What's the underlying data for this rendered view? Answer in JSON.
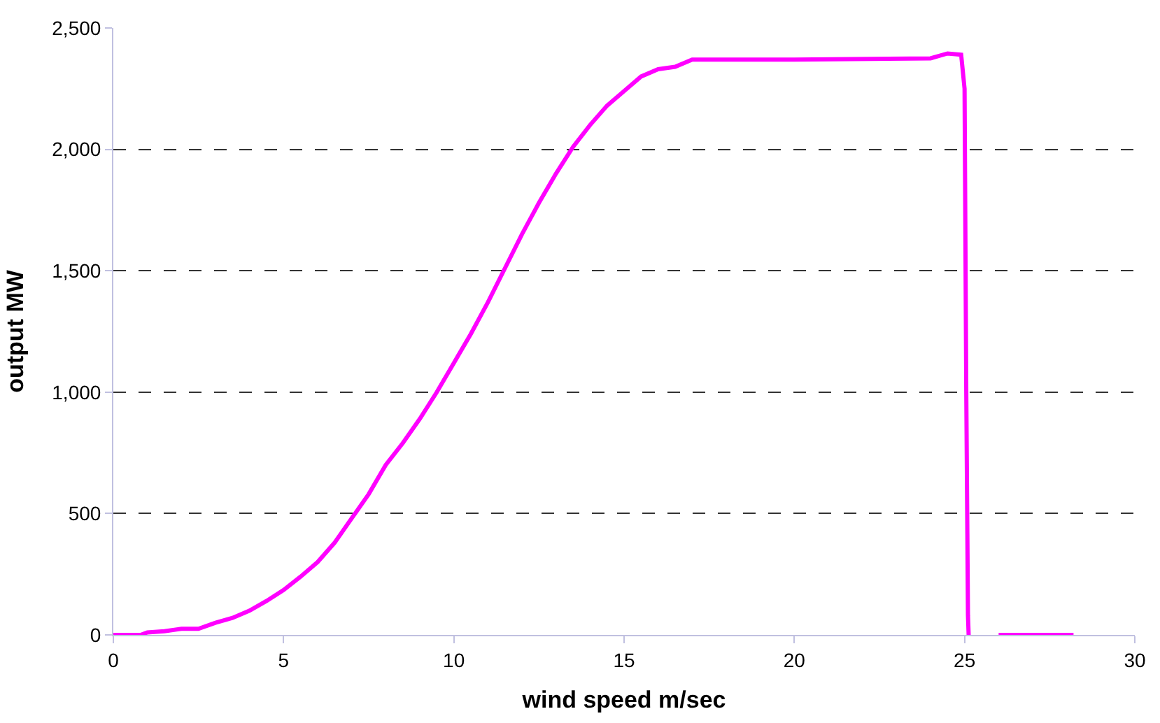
{
  "chart_data": {
    "type": "line",
    "xlabel": "wind speed m/sec",
    "ylabel": "output MW",
    "x": [
      0,
      0.8,
      1,
      1.5,
      2,
      2.5,
      3,
      3.5,
      4,
      4.5,
      5,
      5.5,
      6,
      6.5,
      7,
      7.5,
      8,
      8.5,
      9,
      9.5,
      10,
      10.5,
      11,
      11.5,
      12,
      12.5,
      13,
      13.5,
      14,
      14.5,
      15,
      15.5,
      16,
      16.5,
      17,
      20,
      24,
      24.5,
      24.9,
      25,
      25.05,
      25.1,
      25.12,
      25.5,
      26,
      27,
      28.2
    ],
    "series": [
      {
        "color": "#ff00ff",
        "values": [
          0,
          0,
          10,
          15,
          25,
          25,
          50,
          70,
          100,
          140,
          185,
          240,
          300,
          380,
          480,
          580,
          700,
          790,
          890,
          1000,
          1120,
          1240,
          1370,
          1510,
          1650,
          1780,
          1900,
          2010,
          2100,
          2180,
          2240,
          2300,
          2330,
          2340,
          2370,
          2370,
          2375,
          2395,
          2390,
          2250,
          1000,
          80,
          0,
          null,
          0,
          0,
          0
        ]
      }
    ],
    "xlim": [
      0,
      30
    ],
    "xticks": [
      0,
      5,
      10,
      15,
      20,
      25,
      30
    ],
    "ylim": [
      0,
      2500
    ],
    "yticks": [
      0,
      {
        "value": 500,
        "label": "500"
      },
      {
        "value": 1000,
        "label": "1,000"
      },
      {
        "value": 1500,
        "label": "1,500"
      },
      {
        "value": 2000,
        "label": "2,000"
      },
      {
        "value": 2500,
        "label": "2,500"
      }
    ],
    "grid": "y",
    "line_style": "solid",
    "marker": "none"
  }
}
